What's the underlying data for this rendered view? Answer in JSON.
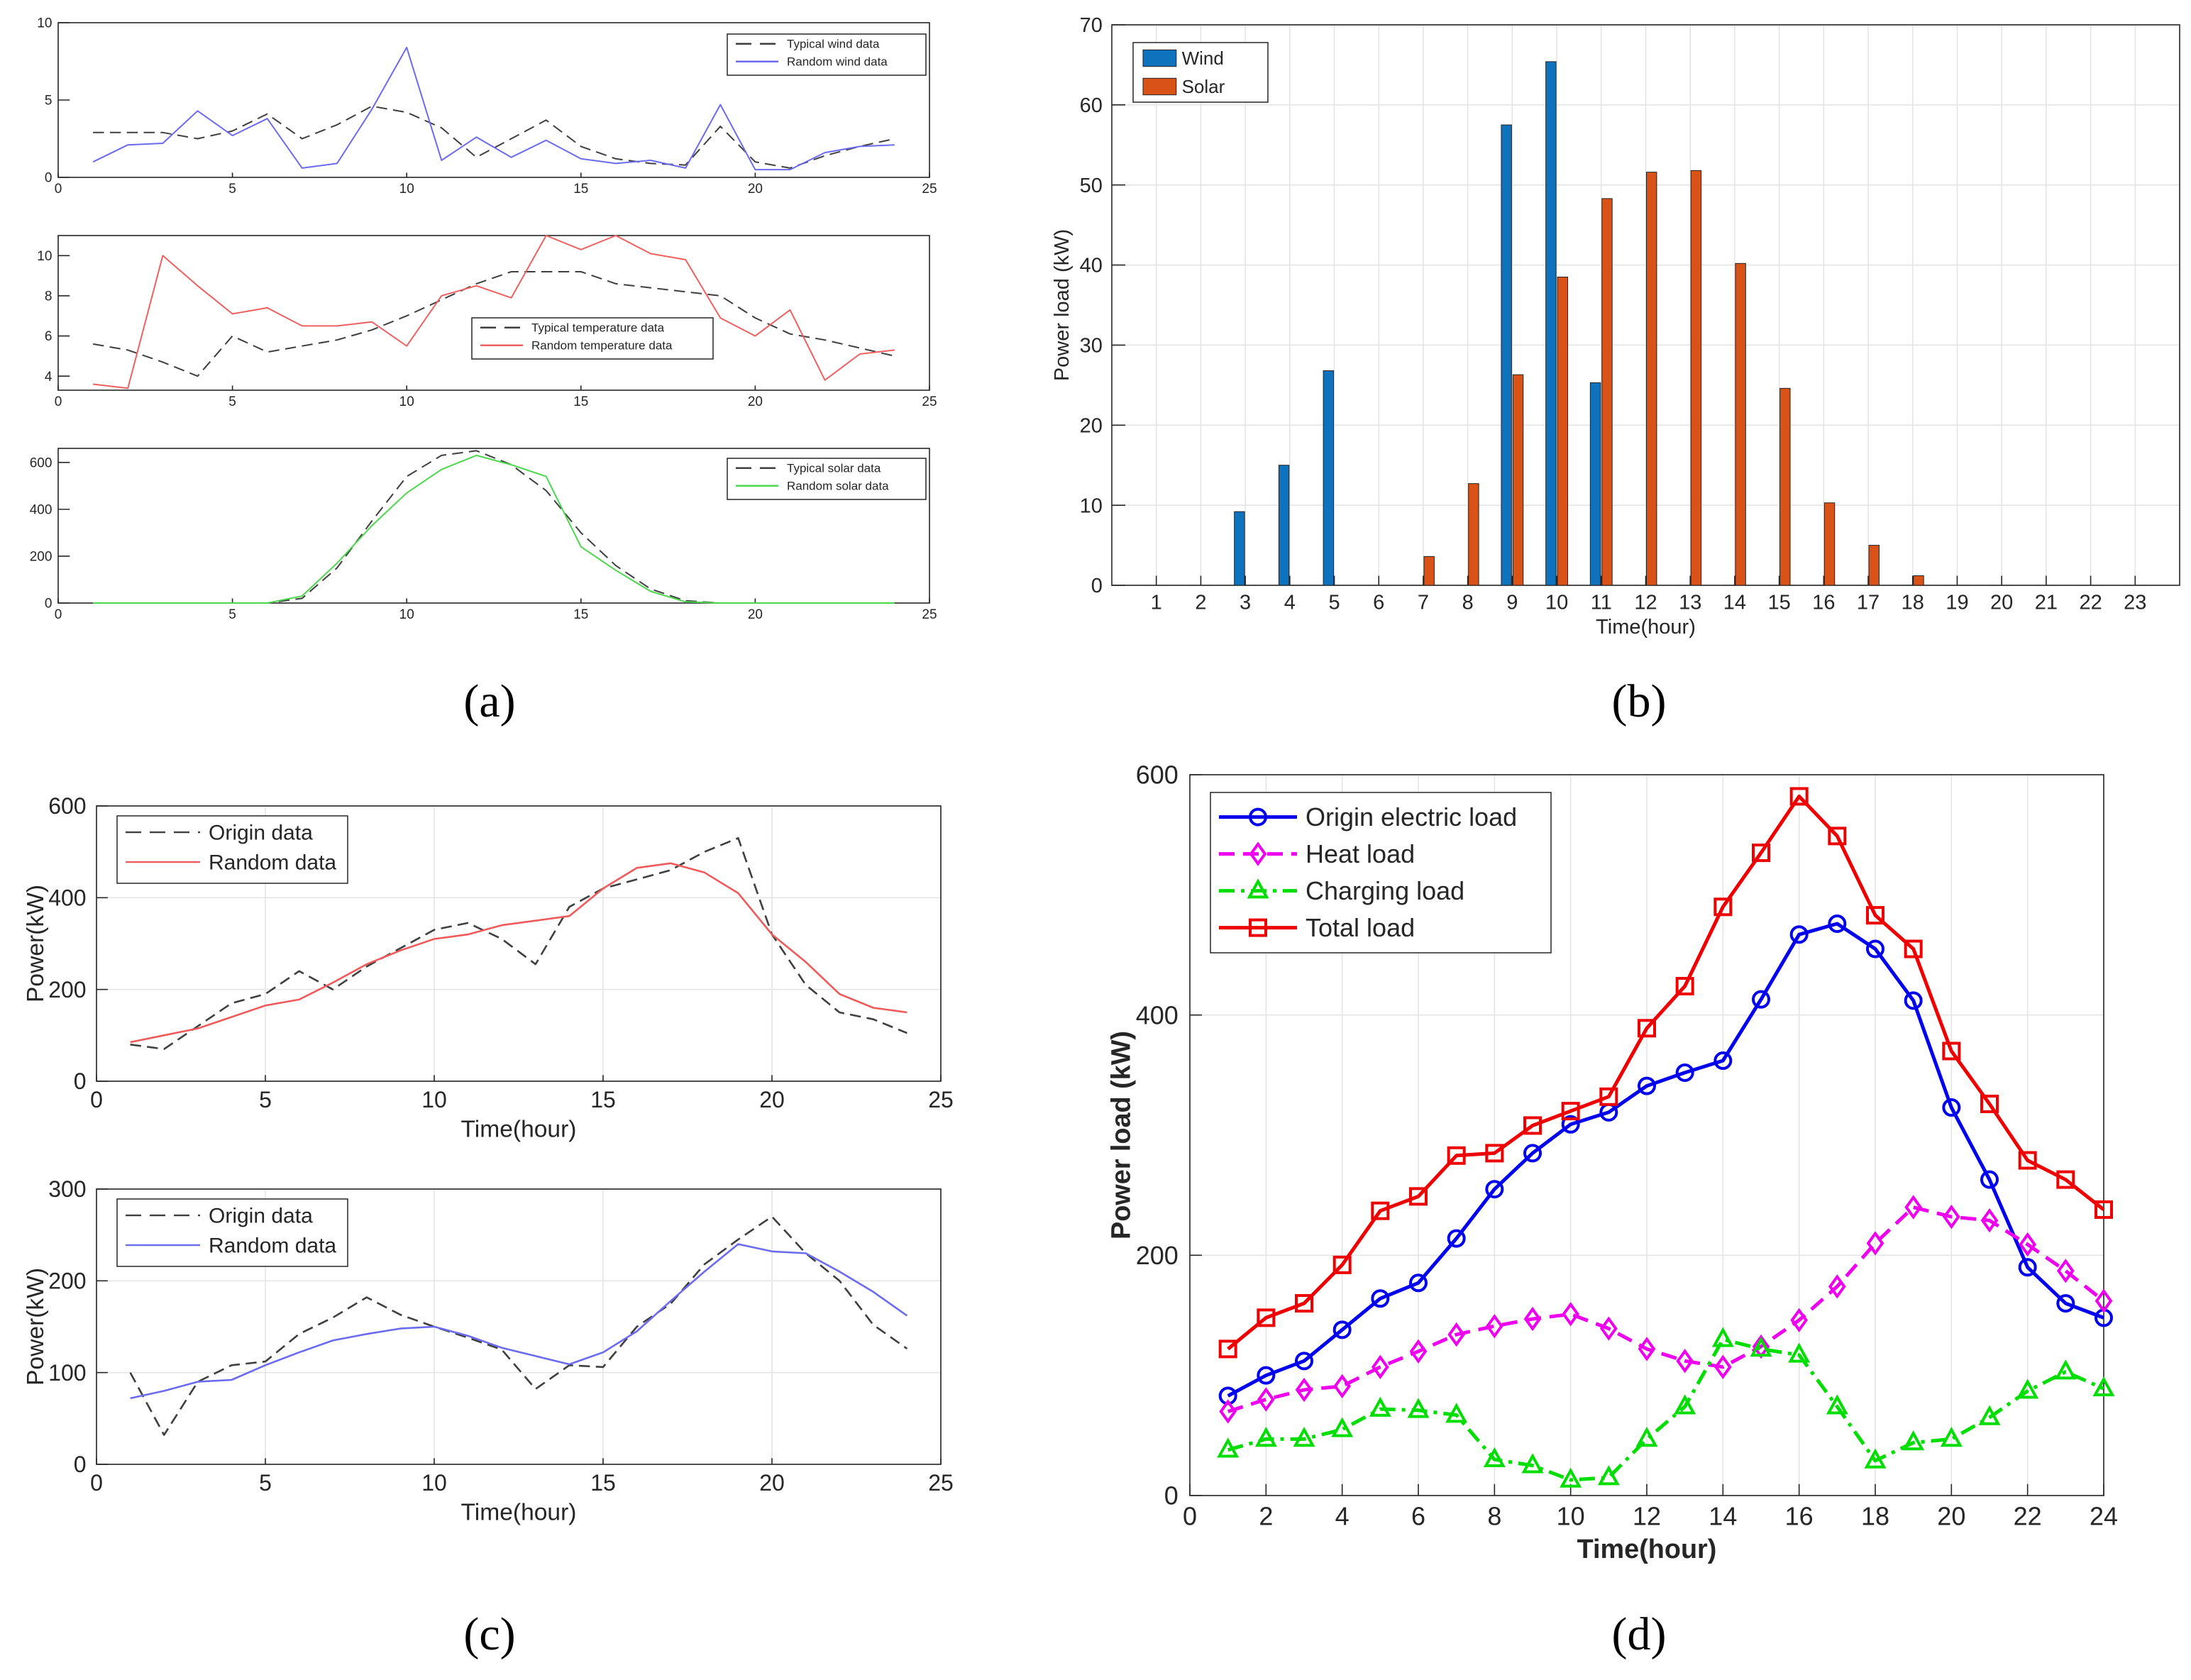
{
  "panel_labels": {
    "a": "(a)",
    "b": "(b)",
    "c": "(c)",
    "d": "(d)"
  },
  "chart_data": [
    {
      "id": "a1",
      "type": "line",
      "x": [
        1,
        2,
        3,
        4,
        5,
        6,
        7,
        8,
        9,
        10,
        11,
        12,
        13,
        14,
        15,
        16,
        17,
        18,
        19,
        20,
        21,
        22,
        23,
        24
      ],
      "xlim": [
        0,
        25
      ],
      "ylim": [
        0,
        10
      ],
      "xticks": [
        0,
        5,
        10,
        15,
        20,
        25
      ],
      "yticks": [
        0,
        5,
        10
      ],
      "legend_position": "top-right",
      "series": [
        {
          "name": "Typical wind data",
          "color": "#3f3f3f",
          "style": "dashed",
          "values": [
            2.9,
            2.9,
            2.9,
            2.5,
            3.0,
            4.1,
            2.5,
            3.4,
            4.6,
            4.2,
            3.2,
            1.3,
            2.5,
            3.7,
            2.0,
            1.2,
            0.9,
            0.8,
            3.3,
            1.0,
            0.6,
            1.4,
            2.0,
            2.5
          ]
        },
        {
          "name": "Random wind data",
          "color": "#6b6bf0",
          "style": "solid",
          "values": [
            1.0,
            2.1,
            2.2,
            4.3,
            2.7,
            3.8,
            0.6,
            0.9,
            4.4,
            8.4,
            1.1,
            2.6,
            1.3,
            2.4,
            1.2,
            0.9,
            1.1,
            0.6,
            4.7,
            0.5,
            0.5,
            1.6,
            2.0,
            2.1
          ]
        }
      ]
    },
    {
      "id": "a2",
      "type": "line",
      "x": [
        1,
        2,
        3,
        4,
        5,
        6,
        7,
        8,
        9,
        10,
        11,
        12,
        13,
        14,
        15,
        16,
        17,
        18,
        19,
        20,
        21,
        22,
        23,
        24
      ],
      "xlim": [
        0,
        25
      ],
      "ylim": [
        3.3,
        11
      ],
      "xticks": [
        0,
        5,
        10,
        15,
        20,
        25
      ],
      "yticks": [
        4,
        6,
        8,
        10
      ],
      "legend_position": "lower-right",
      "series": [
        {
          "name": "Typical temperature data",
          "color": "#3f3f3f",
          "style": "dashed",
          "values": [
            5.6,
            5.3,
            4.7,
            4.0,
            6.0,
            5.2,
            5.5,
            5.8,
            6.3,
            7.0,
            7.8,
            8.6,
            9.2,
            9.2,
            9.2,
            8.6,
            8.4,
            8.2,
            8.0,
            6.9,
            6.1,
            5.8,
            5.4,
            5.0
          ]
        },
        {
          "name": "Random temperature data",
          "color": "#ef6060",
          "style": "solid",
          "values": [
            3.6,
            3.4,
            10.0,
            8.5,
            7.1,
            7.4,
            6.5,
            6.5,
            6.7,
            5.5,
            8.0,
            8.5,
            7.9,
            11.0,
            10.3,
            11.0,
            10.1,
            9.8,
            6.9,
            6.0,
            7.3,
            3.8,
            5.1,
            5.3
          ]
        }
      ]
    },
    {
      "id": "a3",
      "type": "line",
      "x": [
        1,
        2,
        3,
        4,
        5,
        6,
        7,
        8,
        9,
        10,
        11,
        12,
        13,
        14,
        15,
        16,
        17,
        18,
        19,
        20,
        21,
        22,
        23,
        24
      ],
      "xlim": [
        0,
        25
      ],
      "ylim": [
        0,
        660
      ],
      "xticks": [
        0,
        5,
        10,
        15,
        20,
        25
      ],
      "yticks": [
        0,
        200,
        400,
        600
      ],
      "legend_position": "top-right",
      "series": [
        {
          "name": "Typical solar data",
          "color": "#3f3f3f",
          "style": "dashed",
          "values": [
            0,
            0,
            0,
            0,
            0,
            0,
            20,
            150,
            350,
            540,
            630,
            650,
            590,
            480,
            300,
            160,
            60,
            10,
            0,
            0,
            0,
            0,
            0,
            0
          ]
        },
        {
          "name": "Random solar data",
          "color": "#4cd84c",
          "style": "solid",
          "values": [
            0,
            0,
            0,
            0,
            0,
            0,
            30,
            170,
            330,
            470,
            570,
            630,
            590,
            540,
            240,
            140,
            50,
            5,
            0,
            0,
            0,
            0,
            0,
            0
          ]
        }
      ]
    },
    {
      "id": "b",
      "type": "bar",
      "categories": [
        "1",
        "2",
        "3",
        "4",
        "5",
        "6",
        "7",
        "8",
        "9",
        "10",
        "11",
        "12",
        "13",
        "14",
        "15",
        "16",
        "17",
        "18",
        "19",
        "20",
        "21",
        "22",
        "23"
      ],
      "xlabel": "Time(hour)",
      "ylabel": "Power load (kW)",
      "ylim": [
        0,
        70
      ],
      "yticks": [
        0,
        10,
        20,
        30,
        40,
        50,
        60,
        70
      ],
      "legend_position": "top-left",
      "series": [
        {
          "name": "Wind",
          "color": "#0e72bd",
          "values": [
            0,
            0,
            9.2,
            15.0,
            26.8,
            0,
            0,
            0,
            57.5,
            65.4,
            25.3,
            0,
            0,
            0,
            0,
            0,
            0,
            0,
            0,
            0,
            0,
            0,
            0
          ]
        },
        {
          "name": "Solar",
          "color": "#d95318",
          "values": [
            0,
            0,
            0,
            0,
            0,
            0,
            3.6,
            12.7,
            26.3,
            38.5,
            48.3,
            51.6,
            51.8,
            40.2,
            24.6,
            10.3,
            5.0,
            1.2,
            0,
            0,
            0,
            0,
            0
          ]
        }
      ]
    },
    {
      "id": "c1",
      "type": "line",
      "x": [
        1,
        2,
        3,
        4,
        5,
        6,
        7,
        8,
        9,
        10,
        11,
        12,
        13,
        14,
        15,
        16,
        17,
        18,
        19,
        20,
        21,
        22,
        23,
        24
      ],
      "xlabel": "Time(hour)",
      "ylabel": "Power(kW)",
      "xlim": [
        0,
        25
      ],
      "ylim": [
        0,
        600
      ],
      "xticks": [
        0,
        5,
        10,
        15,
        20,
        25
      ],
      "yticks": [
        0,
        200,
        400,
        600
      ],
      "legend_position": "top-left",
      "series": [
        {
          "name": "Origin data",
          "color": "#3f3f3f",
          "style": "dashed",
          "values": [
            80,
            70,
            120,
            170,
            190,
            240,
            200,
            250,
            290,
            330,
            345,
            310,
            255,
            380,
            420,
            440,
            460,
            500,
            530,
            320,
            210,
            150,
            135,
            105
          ]
        },
        {
          "name": "Random data",
          "color": "#ef5a5a",
          "style": "solid",
          "values": [
            85,
            100,
            115,
            140,
            165,
            178,
            215,
            255,
            285,
            310,
            320,
            340,
            350,
            360,
            420,
            465,
            475,
            455,
            410,
            320,
            260,
            190,
            160,
            150
          ]
        }
      ]
    },
    {
      "id": "c2",
      "type": "line",
      "x": [
        1,
        2,
        3,
        4,
        5,
        6,
        7,
        8,
        9,
        10,
        11,
        12,
        13,
        14,
        15,
        16,
        17,
        18,
        19,
        20,
        21,
        22,
        23,
        24
      ],
      "xlabel": "Time(hour)",
      "ylabel": "Power(kW)",
      "xlim": [
        0,
        25
      ],
      "ylim": [
        0,
        300
      ],
      "xticks": [
        0,
        5,
        10,
        15,
        20,
        25
      ],
      "yticks": [
        0,
        100,
        200,
        300
      ],
      "legend_position": "top-left",
      "series": [
        {
          "name": "Origin data",
          "color": "#3f3f3f",
          "style": "dashed",
          "values": [
            100,
            32,
            90,
            108,
            112,
            142,
            160,
            182,
            163,
            150,
            138,
            125,
            82,
            108,
            106,
            150,
            175,
            218,
            245,
            270,
            230,
            200,
            152,
            126
          ]
        },
        {
          "name": "Random data",
          "color": "#6b6bf0",
          "style": "solid",
          "values": [
            72,
            80,
            90,
            92,
            108,
            122,
            135,
            142,
            148,
            150,
            140,
            127,
            118,
            109,
            122,
            145,
            178,
            210,
            240,
            232,
            230,
            210,
            188,
            162
          ]
        }
      ]
    },
    {
      "id": "d",
      "type": "line",
      "x": [
        1,
        2,
        3,
        4,
        5,
        6,
        7,
        8,
        9,
        10,
        11,
        12,
        13,
        14,
        15,
        16,
        17,
        18,
        19,
        20,
        21,
        22,
        23,
        24
      ],
      "xlabel": "Time(hour)",
      "ylabel": "Power load (kW)",
      "xlim": [
        0,
        24
      ],
      "ylim": [
        0,
        600
      ],
      "xticks": [
        0,
        2,
        4,
        6,
        8,
        10,
        12,
        14,
        16,
        18,
        20,
        22,
        24
      ],
      "yticks": [
        0,
        200,
        400,
        600
      ],
      "legend_position": "top-left",
      "series": [
        {
          "name": "Origin electric load",
          "color": "#0000ee",
          "style": "solid",
          "marker": "circle",
          "values": [
            83,
            100,
            112,
            138,
            164,
            177,
            214,
            255,
            285,
            309,
            319,
            341,
            352,
            362,
            413,
            467,
            476,
            455,
            412,
            323,
            263,
            190,
            160,
            148
          ]
        },
        {
          "name": "Heat load",
          "color": "#ee00ee",
          "style": "dashed",
          "marker": "diamond",
          "values": [
            70,
            80,
            88,
            91,
            107,
            120,
            134,
            141,
            147,
            151,
            139,
            122,
            112,
            107,
            124,
            146,
            174,
            210,
            240,
            232,
            229,
            209,
            187,
            162
          ]
        },
        {
          "name": "Charging load",
          "color": "#00dd00",
          "style": "dashdot",
          "marker": "triangle",
          "values": [
            38,
            47,
            47,
            55,
            72,
            71,
            67,
            30,
            25,
            13,
            15,
            47,
            74,
            130,
            122,
            117,
            74,
            29,
            44,
            47,
            65,
            87,
            103,
            89
          ]
        },
        {
          "name": "Total load",
          "color": "#ee0000",
          "style": "solid",
          "marker": "square",
          "values": [
            122,
            148,
            160,
            192,
            237,
            249,
            283,
            285,
            308,
            320,
            332,
            389,
            424,
            490,
            535,
            582,
            549,
            483,
            455,
            370,
            326,
            279,
            263,
            238
          ]
        }
      ]
    }
  ]
}
